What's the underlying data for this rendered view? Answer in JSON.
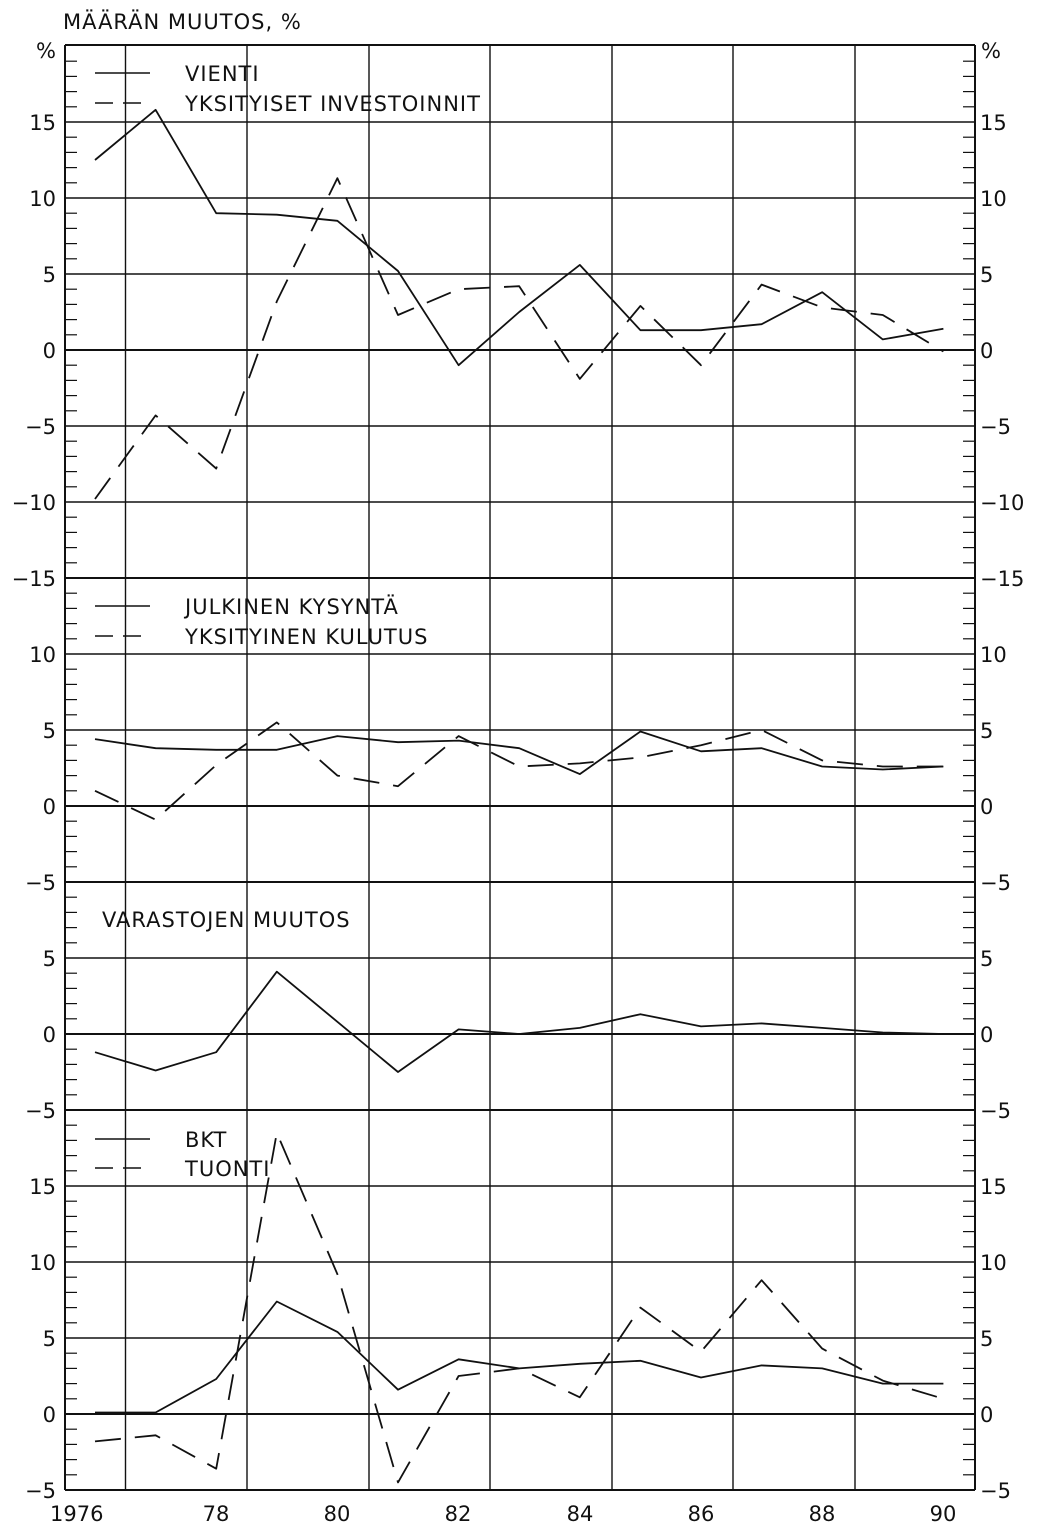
{
  "title": "MÄÄRÄN MUUTOS, %",
  "unit": "%",
  "x_tick_labels": [
    "1976",
    "78",
    "80",
    "82",
    "84",
    "86",
    "88",
    "90"
  ],
  "chart_data": [
    {
      "type": "line",
      "panel": "top",
      "ylim": [
        -15,
        19
      ],
      "y_ticks": [
        15,
        10,
        5,
        0,
        -5,
        -10,
        -15
      ],
      "grid": true,
      "legend": "top-left",
      "x": [
        1976,
        1977,
        1978,
        1979,
        1980,
        1981,
        1982,
        1983,
        1984,
        1985,
        1986,
        1987,
        1988,
        1989,
        1990
      ],
      "series": [
        {
          "name": "VIENTI",
          "style": "solid",
          "values": [
            12.5,
            15.8,
            9.0,
            8.9,
            8.5,
            5.2,
            -1.0,
            2.5,
            5.6,
            1.3,
            1.3,
            1.7,
            3.8,
            0.7,
            1.4
          ]
        },
        {
          "name": "YKSITYISET INVESTOINNIT",
          "style": "dashed",
          "values": [
            -9.8,
            -4.3,
            -7.8,
            3.2,
            11.3,
            2.3,
            4.0,
            4.2,
            -1.9,
            2.9,
            -1.0,
            4.3,
            2.8,
            2.3,
            -0.1
          ]
        }
      ]
    },
    {
      "type": "line",
      "panel": "second",
      "ylim": [
        -5,
        15
      ],
      "y_ticks": [
        10,
        5,
        0,
        -5
      ],
      "grid": true,
      "legend": "top-left",
      "x": [
        1976,
        1977,
        1978,
        1979,
        1980,
        1981,
        1982,
        1983,
        1984,
        1985,
        1986,
        1987,
        1988,
        1989,
        1990
      ],
      "series": [
        {
          "name": "JULKINEN KYSYNTÄ",
          "style": "solid",
          "values": [
            4.4,
            3.8,
            3.7,
            3.7,
            4.6,
            4.2,
            4.3,
            3.8,
            2.1,
            4.9,
            3.6,
            3.8,
            2.6,
            2.4,
            2.6
          ]
        },
        {
          "name": "YKSITYINEN KULUTUS",
          "style": "dashed",
          "values": [
            1.0,
            -0.9,
            2.7,
            5.5,
            2.0,
            1.3,
            4.6,
            2.6,
            2.8,
            3.2,
            4.0,
            5.0,
            3.0,
            2.6,
            2.6
          ]
        }
      ]
    },
    {
      "type": "line",
      "panel": "third",
      "ylim": [
        -5,
        10
      ],
      "y_ticks": [
        5,
        0,
        -5
      ],
      "grid": true,
      "legend": "top-left",
      "x": [
        1976,
        1977,
        1978,
        1979,
        1980,
        1981,
        1982,
        1983,
        1984,
        1985,
        1986,
        1987,
        1988,
        1989,
        1990
      ],
      "series": [
        {
          "name": "VARASTOJEN MUUTOS",
          "style": "solid",
          "values": [
            -1.2,
            -2.4,
            -1.2,
            4.1,
            0.8,
            -2.5,
            0.3,
            0.0,
            0.4,
            1.3,
            0.5,
            0.7,
            0.4,
            0.1,
            0.0
          ]
        }
      ]
    },
    {
      "type": "line",
      "panel": "bottom",
      "ylim": [
        -5,
        19
      ],
      "y_ticks": [
        15,
        10,
        5,
        0,
        -5
      ],
      "grid": true,
      "legend": "top-left",
      "x": [
        1976,
        1977,
        1978,
        1979,
        1980,
        1981,
        1982,
        1983,
        1984,
        1985,
        1986,
        1987,
        1988,
        1989,
        1990
      ],
      "series": [
        {
          "name": "BKT",
          "style": "solid",
          "values": [
            0.1,
            0.1,
            2.3,
            7.4,
            5.4,
            1.6,
            3.6,
            3.0,
            3.3,
            3.5,
            2.4,
            3.2,
            3.0,
            2.0,
            2.0
          ]
        },
        {
          "name": "TUONTI",
          "style": "dashed",
          "values": [
            -1.8,
            -1.4,
            -3.6,
            18.5,
            9.2,
            -4.5,
            2.5,
            3.0,
            1.1,
            7.0,
            4.1,
            8.8,
            4.3,
            2.2,
            1.0
          ]
        }
      ]
    }
  ]
}
